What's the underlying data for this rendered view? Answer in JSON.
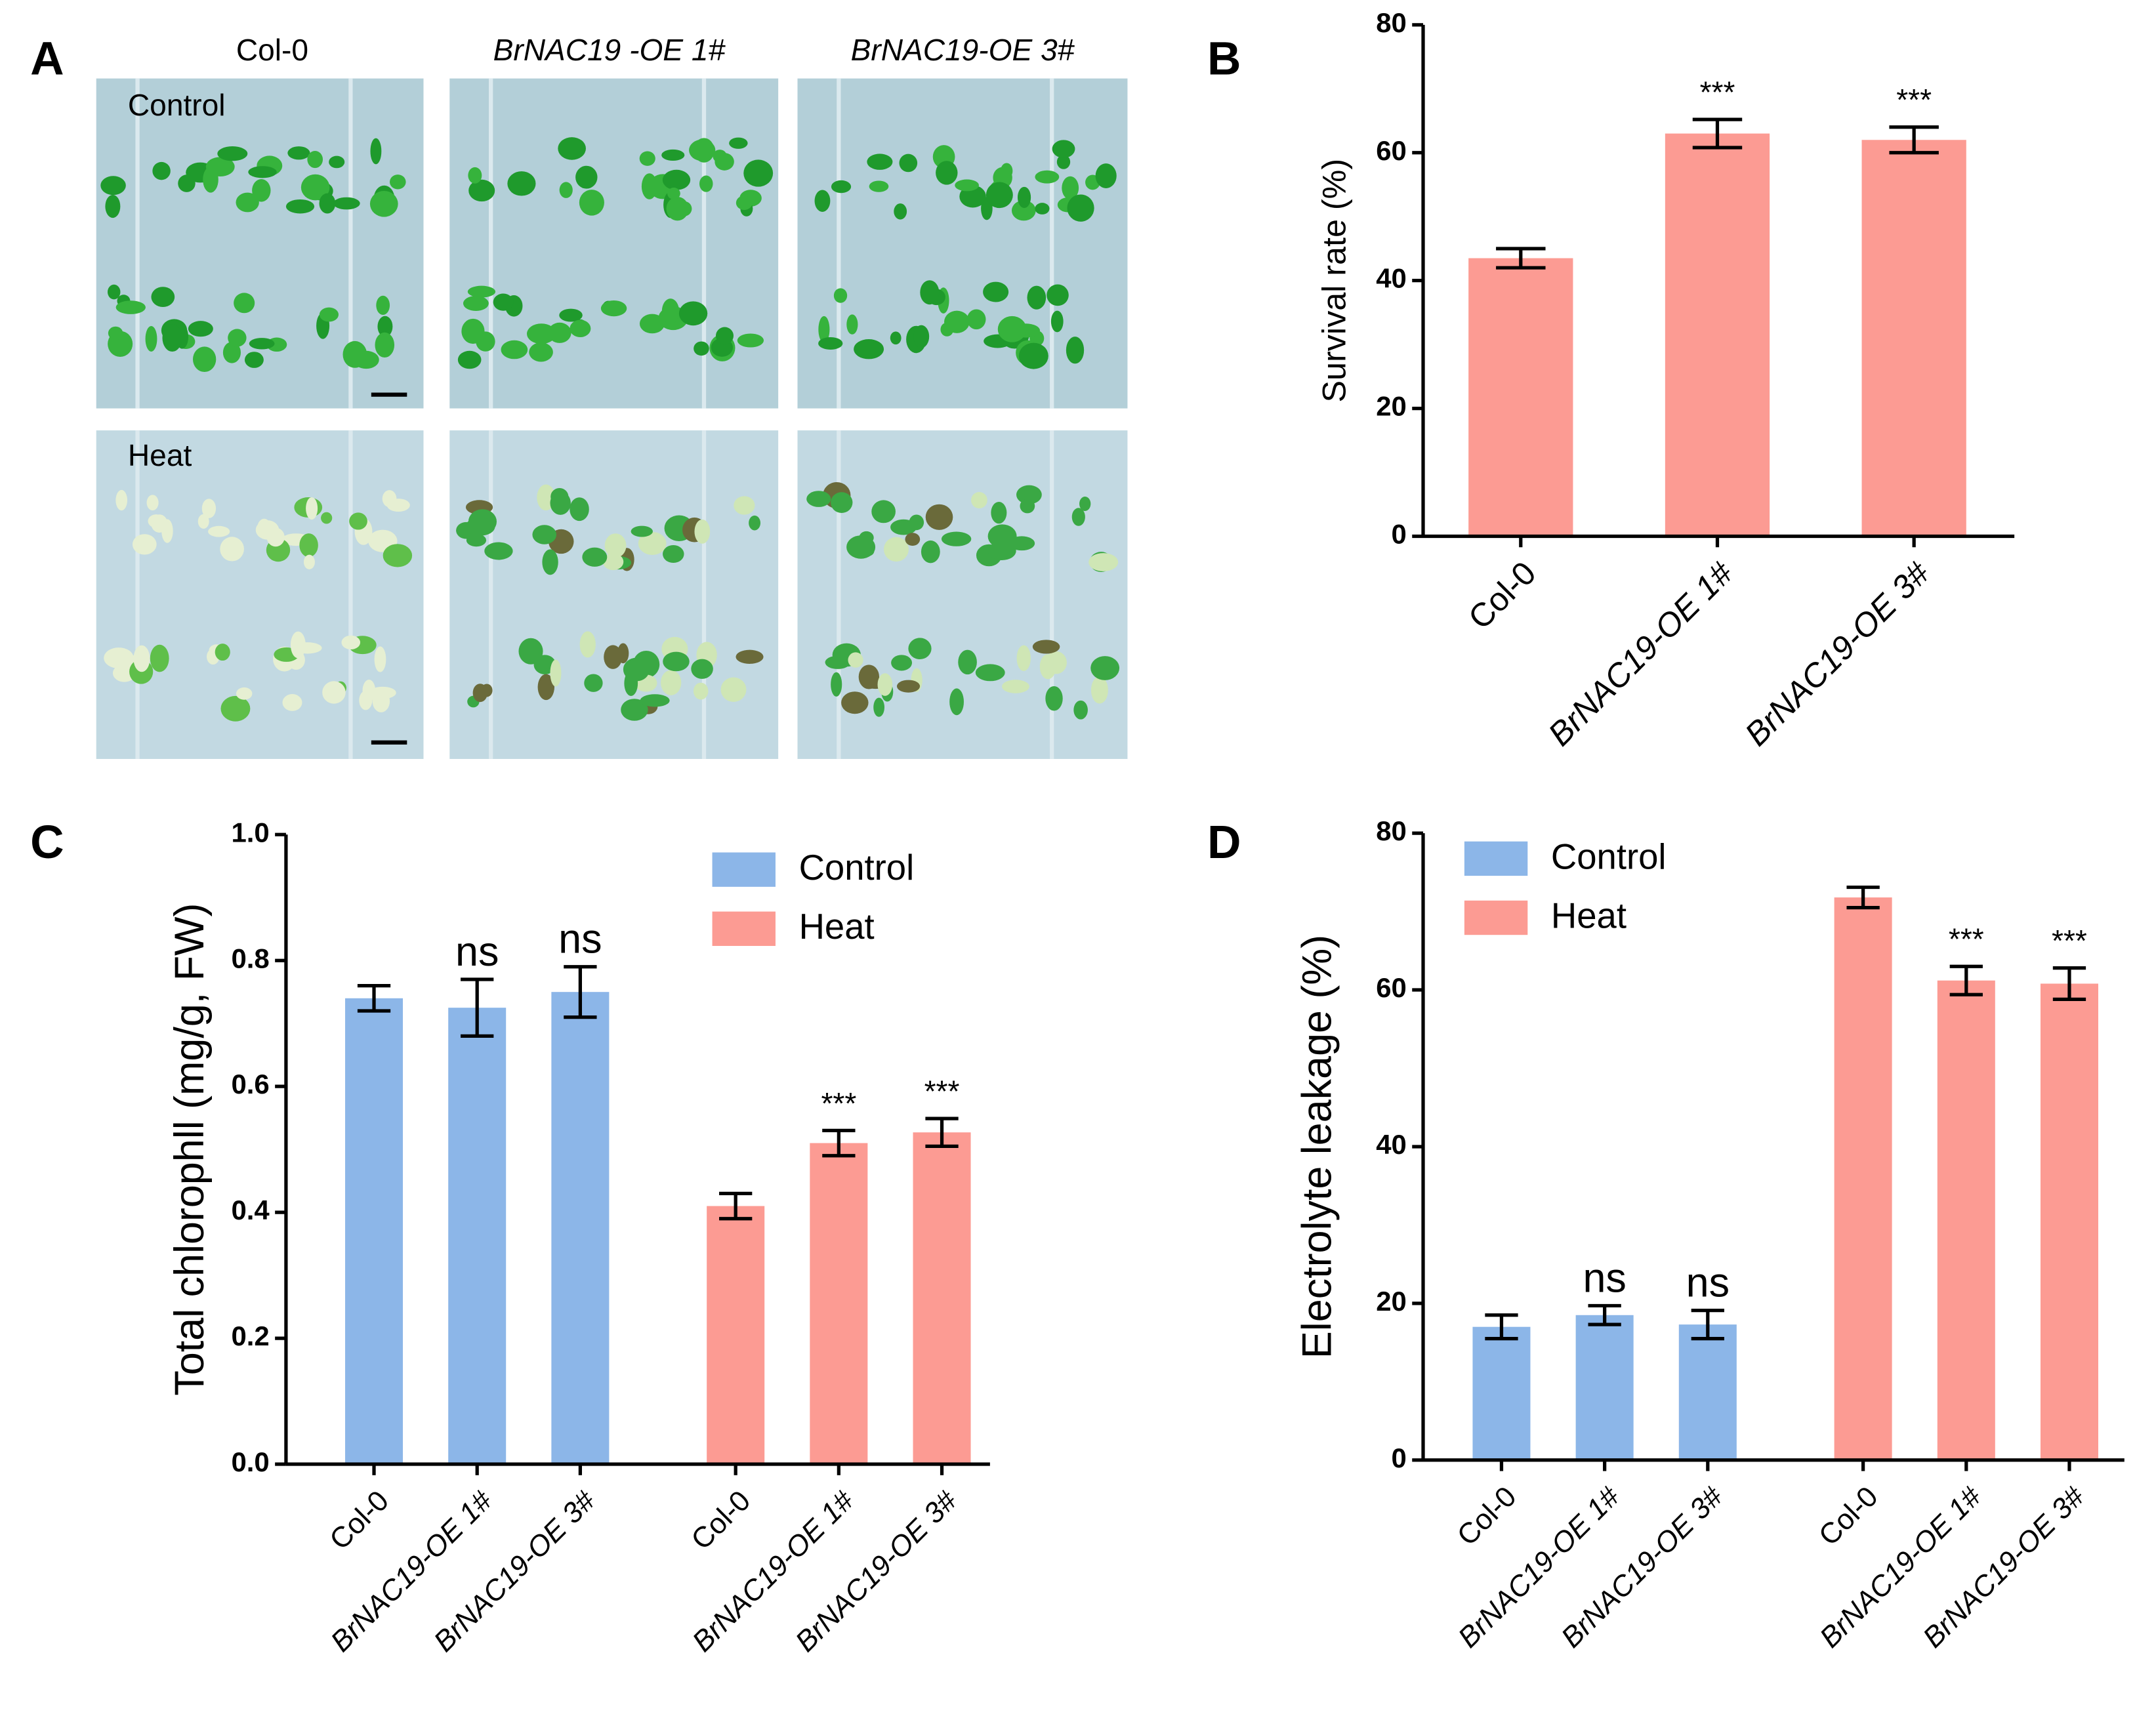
{
  "panel_a": {
    "label": "A",
    "columns": [
      "Col-0",
      "BrNAC19 -OE 1#",
      "BrNAC19-OE 3#"
    ],
    "rows": [
      "Control",
      "Heat"
    ]
  },
  "chart_data": [
    {
      "type": "bar",
      "panel_label": "B",
      "ylabel": "Survival rate (%)",
      "categories": [
        "Col-0",
        "BrNAC19-OE 1#",
        "BrNAC19-OE 3#"
      ],
      "values": [
        43.5,
        63,
        62
      ],
      "errors": [
        1.5,
        2.2,
        2
      ],
      "annotations": [
        null,
        "***",
        "***"
      ],
      "color": "#fc9b93",
      "ylim": [
        0,
        80
      ],
      "yticks": [
        0,
        20,
        40,
        60,
        80
      ]
    },
    {
      "type": "grouped_bar",
      "panel_label": "C",
      "ylabel": "Total chlorophll (mg/g, FW)",
      "categories": [
        "Col-0",
        "BrNAC19-OE 1#",
        "BrNAC19-OE 3#"
      ],
      "series": [
        {
          "name": "Control",
          "color": "#8cb6e8",
          "values": [
            0.74,
            0.725,
            0.75
          ],
          "errors": [
            0.02,
            0.045,
            0.04
          ],
          "annotations": [
            null,
            "ns",
            "ns"
          ]
        },
        {
          "name": "Heat",
          "color": "#fc9b93",
          "values": [
            0.41,
            0.51,
            0.527
          ],
          "errors": [
            0.02,
            0.02,
            0.022
          ],
          "annotations": [
            null,
            "***",
            "***"
          ]
        }
      ],
      "ylim": [
        0,
        1.0
      ],
      "yticks": [
        {
          "value": 0,
          "label": "0.0"
        },
        0.2,
        0.4,
        0.6,
        0.8,
        {
          "value": 1.0,
          "label": "1.0"
        }
      ],
      "legend": "upper right"
    },
    {
      "type": "grouped_bar",
      "panel_label": "D",
      "ylabel": "Electrolyte leakage (%)",
      "categories": [
        "Col-0",
        "BrNAC19-OE 1#",
        "BrNAC19-OE 3#"
      ],
      "series": [
        {
          "name": "Control",
          "color": "#8cb6e8",
          "values": [
            17,
            18.5,
            17.3
          ],
          "errors": [
            1.5,
            1.2,
            1.8
          ],
          "annotations": [
            null,
            "ns",
            "ns"
          ]
        },
        {
          "name": "Heat",
          "color": "#fc9b93",
          "values": [
            71.8,
            61.2,
            60.8
          ],
          "errors": [
            1.3,
            1.8,
            2
          ],
          "annotations": [
            null,
            "***",
            "***"
          ]
        }
      ],
      "ylim": [
        0,
        80
      ],
      "yticks": [
        0,
        20,
        40,
        60,
        80
      ],
      "legend": "upper left"
    }
  ]
}
